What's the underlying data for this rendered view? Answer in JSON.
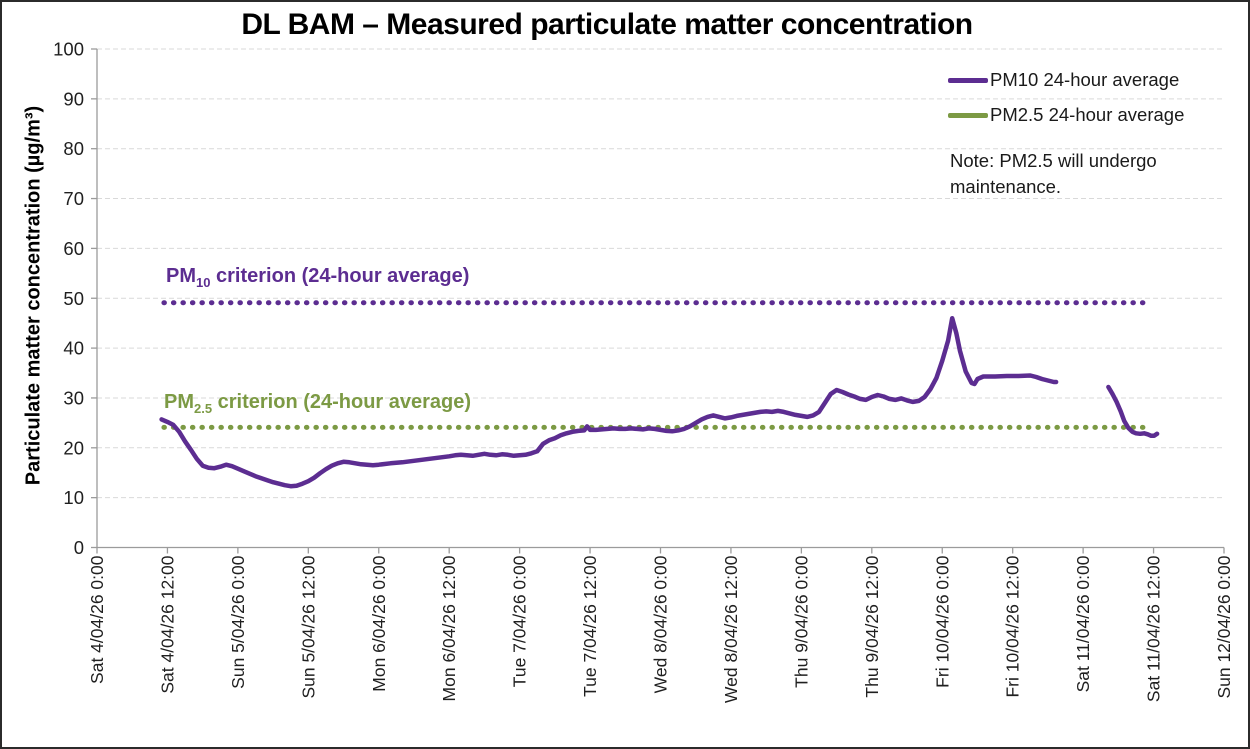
{
  "title": "DL BAM – Measured particulate matter concentration",
  "note": {
    "line1": "Note: PM2.5 will undergo",
    "line2": "maintenance."
  },
  "criteria": {
    "pm10": {
      "prefix": "PM",
      "sub": "10",
      "suffix": " criterion (24-hour average)",
      "value": 50,
      "color": "#5C2D91"
    },
    "pm25": {
      "prefix": "PM",
      "sub": "2.5",
      "suffix": " criterion (24-hour average)",
      "value": 25,
      "color": "#7C9A44"
    }
  },
  "colors": {
    "pm10_line": "#5C2D91",
    "pm25_line": "#7C9A44",
    "gridline": "#D9D9D9",
    "axis": "#9B9B9B",
    "tick_text": "#1F1F1F"
  },
  "chart_data": {
    "type": "line",
    "title": "DL BAM – Measured particulate matter concentration",
    "xlabel": "",
    "ylabel": "Particulate matter concentration (µg/m³)",
    "ylim": [
      0,
      100
    ],
    "y_ticks": [
      0,
      10,
      20,
      30,
      40,
      50,
      60,
      70,
      80,
      90,
      100
    ],
    "grid": "horizontal-dashed",
    "legend_position": "top-right-inside",
    "x_axis_total_hours": 192,
    "x_tick_labels": [
      "Sat 4/04/26 0:00",
      "Sat 4/04/26 12:00",
      "Sun 5/04/26 0:00",
      "Sun 5/04/26 12:00",
      "Mon 6/04/26 0:00",
      "Mon 6/04/26 12:00",
      "Tue 7/04/26 0:00",
      "Tue 7/04/26 12:00",
      "Wed 8/04/26 0:00",
      "Wed 8/04/26 12:00",
      "Thu 9/04/26 0:00",
      "Thu 9/04/26 12:00",
      "Fri 10/04/26 0:00",
      "Fri 10/04/26 12:00",
      "Sat 11/04/26 0:00",
      "Sat 11/04/26 12:00",
      "Sun 12/04/26 0:00"
    ],
    "x_unit": "hours since Sat 4/04/26 0:00",
    "series": [
      {
        "name": "PM10 24-hour average",
        "color": "#5C2D91",
        "segments": [
          [
            [
              11,
              25.7
            ],
            [
              12,
              25.2
            ],
            [
              13,
              24.6
            ],
            [
              14,
              23.2
            ],
            [
              15,
              21.3
            ],
            [
              16,
              19.6
            ],
            [
              17,
              17.8
            ],
            [
              18,
              16.4
            ],
            [
              19,
              16
            ],
            [
              20,
              15.9
            ],
            [
              21,
              16.2
            ],
            [
              22,
              16.6
            ],
            [
              23,
              16.3
            ],
            [
              24,
              15.8
            ],
            [
              25,
              15.3
            ],
            [
              26,
              14.8
            ],
            [
              27,
              14.3
            ],
            [
              28,
              13.9
            ],
            [
              29,
              13.5
            ],
            [
              30,
              13.1
            ],
            [
              31,
              12.8
            ],
            [
              32,
              12.5
            ],
            [
              33,
              12.3
            ],
            [
              34,
              12.4
            ],
            [
              35,
              12.8
            ],
            [
              36,
              13.3
            ],
            [
              37,
              14
            ],
            [
              38,
              14.9
            ],
            [
              39,
              15.7
            ],
            [
              40,
              16.4
            ],
            [
              41,
              16.9
            ],
            [
              42,
              17.2
            ],
            [
              43,
              17.1
            ],
            [
              44,
              16.9
            ],
            [
              45,
              16.7
            ],
            [
              46,
              16.6
            ],
            [
              47,
              16.5
            ],
            [
              48,
              16.6
            ],
            [
              50,
              16.9
            ],
            [
              52,
              17.1
            ],
            [
              54,
              17.4
            ],
            [
              56,
              17.7
            ],
            [
              58,
              18
            ],
            [
              60,
              18.3
            ],
            [
              61,
              18.5
            ],
            [
              62,
              18.6
            ],
            [
              63,
              18.5
            ],
            [
              64,
              18.4
            ],
            [
              65,
              18.6
            ],
            [
              66,
              18.8
            ],
            [
              67,
              18.6
            ],
            [
              68,
              18.5
            ],
            [
              69,
              18.7
            ],
            [
              70,
              18.6
            ],
            [
              71,
              18.4
            ],
            [
              72,
              18.5
            ],
            [
              73,
              18.6
            ],
            [
              74,
              18.9
            ],
            [
              75,
              19.3
            ],
            [
              76,
              20.8
            ],
            [
              77,
              21.5
            ],
            [
              78,
              21.9
            ],
            [
              79,
              22.5
            ],
            [
              80,
              22.9
            ],
            [
              81,
              23.2
            ],
            [
              82,
              23.4
            ],
            [
              83,
              23.5
            ],
            [
              83.5,
              24.3
            ],
            [
              84,
              23.6
            ],
            [
              85,
              23.6
            ],
            [
              86,
              23.7
            ],
            [
              87,
              23.8
            ],
            [
              88,
              23.9
            ],
            [
              89,
              23.8
            ],
            [
              90,
              23.8
            ],
            [
              91,
              23.9
            ],
            [
              92,
              23.8
            ],
            [
              93,
              23.7
            ],
            [
              94,
              23.9
            ],
            [
              95,
              23.8
            ],
            [
              96,
              23.6
            ],
            [
              97,
              23.4
            ],
            [
              98,
              23.3
            ],
            [
              99,
              23.5
            ],
            [
              100,
              23.8
            ],
            [
              101,
              24.3
            ],
            [
              102,
              25
            ],
            [
              103,
              25.7
            ],
            [
              104,
              26.2
            ],
            [
              105,
              26.5
            ],
            [
              106,
              26.2
            ],
            [
              107,
              25.9
            ],
            [
              108,
              26.1
            ],
            [
              109,
              26.4
            ],
            [
              110,
              26.6
            ],
            [
              111,
              26.8
            ],
            [
              112,
              27
            ],
            [
              113,
              27.2
            ],
            [
              114,
              27.3
            ],
            [
              115,
              27.2
            ],
            [
              116,
              27.4
            ],
            [
              117,
              27.2
            ],
            [
              118,
              26.9
            ],
            [
              119,
              26.6
            ],
            [
              120,
              26.4
            ],
            [
              121,
              26.2
            ],
            [
              122,
              26.5
            ],
            [
              123,
              27.2
            ],
            [
              124,
              29
            ],
            [
              125,
              30.8
            ],
            [
              126,
              31.6
            ],
            [
              127,
              31.2
            ],
            [
              128,
              30.7
            ],
            [
              129,
              30.3
            ],
            [
              130,
              29.8
            ],
            [
              131,
              29.6
            ],
            [
              132,
              30.2
            ],
            [
              133,
              30.6
            ],
            [
              134,
              30.3
            ],
            [
              135,
              29.8
            ],
            [
              136,
              29.6
            ],
            [
              137,
              29.9
            ],
            [
              138,
              29.5
            ],
            [
              139,
              29.2
            ],
            [
              140,
              29.4
            ],
            [
              141,
              30.2
            ],
            [
              142,
              31.8
            ],
            [
              143,
              34
            ],
            [
              144,
              37.5
            ],
            [
              145,
              41.5
            ],
            [
              145.7,
              46
            ],
            [
              146.4,
              43
            ],
            [
              147,
              39.5
            ],
            [
              148,
              35.3
            ],
            [
              149,
              33
            ],
            [
              149.5,
              32.8
            ],
            [
              150,
              33.8
            ],
            [
              151,
              34.3
            ],
            [
              153,
              34.3
            ],
            [
              155,
              34.4
            ],
            [
              157,
              34.4
            ],
            [
              159,
              34.5
            ],
            [
              160,
              34.2
            ],
            [
              161,
              33.8
            ],
            [
              162,
              33.5
            ],
            [
              163,
              33.2
            ],
            [
              163.4,
              33.2
            ]
          ],
          [
            [
              172.3,
              32.2
            ],
            [
              173,
              30.8
            ],
            [
              173.7,
              29.2
            ],
            [
              174.4,
              27.3
            ],
            [
              175,
              25.4
            ],
            [
              175.7,
              24
            ],
            [
              176.4,
              23.2
            ],
            [
              177,
              22.9
            ],
            [
              177.7,
              22.8
            ],
            [
              178.4,
              22.9
            ],
            [
              179,
              22.7
            ],
            [
              179.6,
              22.4
            ],
            [
              180.1,
              22.4
            ],
            [
              180.6,
              22.8
            ]
          ]
        ]
      },
      {
        "name": "PM2.5 24-hour average",
        "color": "#7C9A44",
        "segments": []
      }
    ],
    "reference_lines": [
      {
        "label": "PM10 criterion (24-hour average)",
        "value": 50,
        "color": "#5C2D91",
        "style": "dotted",
        "t_start": 11.4,
        "t_end": 179.7
      },
      {
        "label": "PM2.5 criterion (24-hour average)",
        "value": 25,
        "color": "#7C9A44",
        "style": "dotted",
        "t_start": 11.4,
        "t_end": 179.7
      }
    ],
    "annotations": [
      "Note: PM2.5 will undergo maintenance."
    ]
  }
}
